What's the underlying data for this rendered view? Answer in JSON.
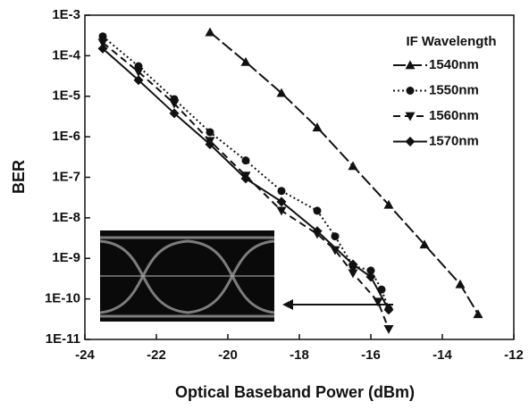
{
  "chart_data": {
    "type": "line",
    "x_label": "Optical Baseband Power (dBm)",
    "y_label": "BER",
    "log_y": true,
    "xlim": [
      -24,
      -12
    ],
    "xticks": [
      -24,
      -22,
      -20,
      -18,
      -16,
      -14,
      -12
    ],
    "ylim": [
      1e-11,
      0.001
    ],
    "yticks": [
      {
        "value": 1e-11,
        "label": "1E-11"
      },
      {
        "value": 1e-10,
        "label": "1E-10"
      },
      {
        "value": 1e-09,
        "label": "1E-9"
      },
      {
        "value": 1e-08,
        "label": "1E-8"
      },
      {
        "value": 1e-07,
        "label": "1E-7"
      },
      {
        "value": 1e-06,
        "label": "1E-6"
      },
      {
        "value": 1e-05,
        "label": "1E-5"
      },
      {
        "value": 0.0001,
        "label": "1E-4"
      },
      {
        "value": 0.001,
        "label": "1E-3"
      }
    ],
    "legend_title": "IF Wavelength",
    "legend": "upper right",
    "series": [
      {
        "name": "1540nm",
        "color": "#111111",
        "marker": "triangle-up",
        "dash": "long-dash",
        "x": [
          -20.5,
          -19.5,
          -18.5,
          -17.5,
          -16.5,
          -15.5,
          -14.5,
          -13.5,
          -13
        ],
        "values": [
          0.00038,
          7e-05,
          1.2e-05,
          1.7e-06,
          1.9e-07,
          2.1e-08,
          2.2e-09,
          2.3e-10,
          4.2e-11
        ]
      },
      {
        "name": "1550nm",
        "color": "#111111",
        "marker": "circle",
        "dash": "dotted",
        "x": [
          -23.5,
          -22.5,
          -21.5,
          -20.5,
          -19.5,
          -18.5,
          -17.5,
          -17,
          -16.5,
          -16,
          -15.7,
          -15.5
        ],
        "values": [
          0.0003,
          5.5e-05,
          8.5e-06,
          1.3e-06,
          2.6e-07,
          4.6e-08,
          1.5e-08,
          3.5e-09,
          6.5e-10,
          5e-10,
          1.7e-10,
          5.6e-11
        ]
      },
      {
        "name": "1560nm",
        "color": "#111111",
        "marker": "triangle-down",
        "dash": "dashed",
        "x": [
          -23.5,
          -22.5,
          -21.5,
          -20.5,
          -19.5,
          -18.5,
          -17.5,
          -17,
          -16.5,
          -15.8,
          -15.5
        ],
        "values": [
          0.00021,
          4e-05,
          6.6e-06,
          7.9e-07,
          1.1e-07,
          1.5e-08,
          4e-09,
          1.6e-09,
          4.3e-10,
          8.5e-11,
          1.8e-11
        ]
      },
      {
        "name": "1570nm",
        "color": "#111111",
        "marker": "diamond",
        "dash": "solid",
        "x": [
          -23.5,
          -22.5,
          -21.5,
          -20.5,
          -19.5,
          -18.5,
          -17.5,
          -16.5,
          -16,
          -15.5
        ],
        "values": [
          0.00015,
          2.5e-05,
          3.8e-06,
          6.5e-07,
          9.3e-08,
          2.5e-08,
          4.7e-09,
          7.1e-10,
          3.5e-10,
          5.4e-11
        ]
      }
    ]
  }
}
